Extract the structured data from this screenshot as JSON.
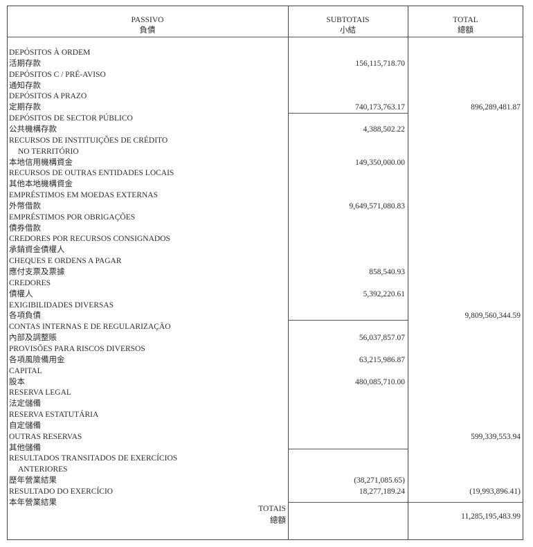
{
  "header": {
    "passivo": "PASSIVO",
    "passivo_zh": "負債",
    "subtotais": "SUBTOTAIS",
    "subtotais_zh": "小結",
    "total": "TOTAL",
    "total_zh": "總額"
  },
  "lines": [
    {
      "text": "DEPÓSITOS À ORDEM"
    },
    {
      "text": "活期存款",
      "subtotal": "156,115,718.70"
    },
    {
      "text": "DEPÓSITOS C / PRÉ-AVISO"
    },
    {
      "text": "通知存款"
    },
    {
      "text": "DEPÓSITOS A PRAZO"
    },
    {
      "text": "定期存款",
      "subtotal": "740,173,763.17",
      "total": "896,289,481.87"
    },
    {
      "text": "DEPÓSITOS DE SECTOR PÚBLICO"
    },
    {
      "text": "公共機構存款",
      "subtotal": "4,388,502.22"
    },
    {
      "text": "RECURSOS DE INSTITUIÇÕES DE CRÉDITO"
    },
    {
      "text": "NO TERRITÓRIO",
      "indent": true
    },
    {
      "text": "本地信用機構資金",
      "subtotal": "149,350,000.00"
    },
    {
      "text": "RECURSOS DE OUTRAS ENTIDADES LOCAIS"
    },
    {
      "text": "其他本地機構資金"
    },
    {
      "text": "EMPRÉSTIMOS EM MOEDAS EXTERNAS"
    },
    {
      "text": "外幣借款",
      "subtotal": "9,649,571,080.83"
    },
    {
      "text": "EMPRÉSTIMOS POR OBRIGAÇÕES"
    },
    {
      "text": "債券借款"
    },
    {
      "text": "CREDORES POR RECURSOS CONSIGNADOS"
    },
    {
      "text": "承銷資金債權人"
    },
    {
      "text": "CHEQUES E ORDENS A PAGAR"
    },
    {
      "text": "應付支票及票據",
      "subtotal": "858,540.93"
    },
    {
      "text": "CREDORES"
    },
    {
      "text": "債權人",
      "subtotal": "5,392,220.61"
    },
    {
      "text": "EXIGIBILIDADES DIVERSAS"
    },
    {
      "text": "各項負債",
      "total": "9,809,560,344.59"
    },
    {
      "text": "CONTAS INTERNAS E DE REGULARIZAÇÃO"
    },
    {
      "text": "內部及調整賬",
      "subtotal": "56,037,857.07"
    },
    {
      "text": "PROVISÕES PARA RISCOS DIVERSOS"
    },
    {
      "text": "各項風險備用金",
      "subtotal": "63,215,986.87"
    },
    {
      "text": "CAPITAL"
    },
    {
      "text": "股本",
      "subtotal": "480,085,710.00"
    },
    {
      "text": "RESERVA LEGAL"
    },
    {
      "text": "法定儲備"
    },
    {
      "text": "RESERVA ESTATUTÁRIA"
    },
    {
      "text": "自定儲備"
    },
    {
      "text": "OUTRAS RESERVAS",
      "total": "599,339,553.94"
    },
    {
      "text": "其他儲備"
    },
    {
      "text": "RESULTADOS TRANSITADOS DE EXERCÍCIOS"
    },
    {
      "text": "ANTERIORES",
      "indent": true
    },
    {
      "text": "歷年營業結果",
      "subtotal": "(38,271,085.65)"
    },
    {
      "text": "RESULTADO DO EXERCÍCIO",
      "subtotal": "18,277,189.24",
      "total": "(19,993,896.41)"
    },
    {
      "text": "本年營業結果"
    }
  ],
  "totals": {
    "label": "TOTAIS",
    "label_zh": "總額",
    "value": "11,285,195,483.99"
  }
}
